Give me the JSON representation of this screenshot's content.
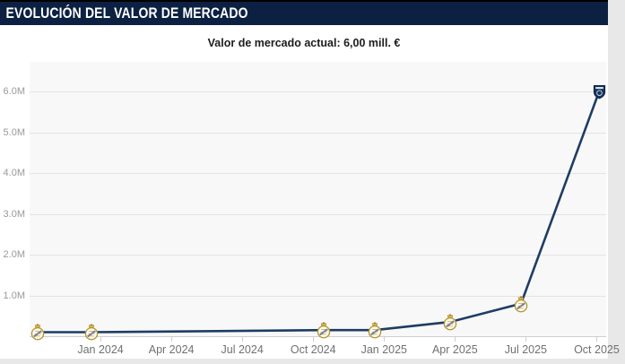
{
  "colors": {
    "header_bg": "#0c2142",
    "page_bg": "#e8e8e8",
    "plot_bg": "#f8f8f8",
    "line": "#1e3c64"
  },
  "header": {
    "title": "EVOLUCIÓN DEL VALOR DE MERCADO"
  },
  "chart_data": {
    "type": "line",
    "title": "Valor de mercado actual: 6,00 mill. €",
    "xlabel": "",
    "ylabel": "",
    "grid": true,
    "legend": false,
    "ylim": [
      0,
      6.73
    ],
    "xlim_months": [
      0,
      24.4
    ],
    "y_ticks": [
      {
        "label": "1.0M",
        "value": 1.0
      },
      {
        "label": "2.0M",
        "value": 2.0
      },
      {
        "label": "3.0M",
        "value": 3.0
      },
      {
        "label": "4.0M",
        "value": 4.0
      },
      {
        "label": "5.0M",
        "value": 5.0
      },
      {
        "label": "6.0M",
        "value": 6.0
      }
    ],
    "x_ticks": [
      {
        "label": "Jan 2024",
        "month_offset": 3
      },
      {
        "label": "Apr 2024",
        "month_offset": 6
      },
      {
        "label": "Jul 2024",
        "month_offset": 9
      },
      {
        "label": "Oct 2024",
        "month_offset": 12
      },
      {
        "label": "Jan 2025",
        "month_offset": 15
      },
      {
        "label": "Apr 2025",
        "month_offset": 18
      },
      {
        "label": "Jul 2025",
        "month_offset": 21
      },
      {
        "label": "Oct 2025",
        "month_offset": 24
      }
    ],
    "series": [
      {
        "name": "Valor de mercado",
        "color": "#1e3c64",
        "points": [
          {
            "x": "Nov 2023",
            "month_offset": 0.35,
            "value_mill_eur": 0.1,
            "marker": "real-madrid-crest"
          },
          {
            "x": "Dec 2023",
            "month_offset": 2.6,
            "value_mill_eur": 0.1,
            "marker": "real-madrid-crest"
          },
          {
            "x": "Oct 2024",
            "month_offset": 12.45,
            "value_mill_eur": 0.15,
            "marker": "real-madrid-crest"
          },
          {
            "x": "Dec 2024",
            "month_offset": 14.6,
            "value_mill_eur": 0.15,
            "marker": "real-madrid-crest"
          },
          {
            "x": "Mar 2025",
            "month_offset": 17.8,
            "value_mill_eur": 0.35,
            "marker": "real-madrid-crest"
          },
          {
            "x": "Jun 2025",
            "month_offset": 20.8,
            "value_mill_eur": 0.8,
            "marker": "real-madrid-crest"
          },
          {
            "x": "Oct 2025",
            "month_offset": 24.1,
            "value_mill_eur": 6.0,
            "marker": "dark-club-badge"
          }
        ]
      }
    ]
  }
}
